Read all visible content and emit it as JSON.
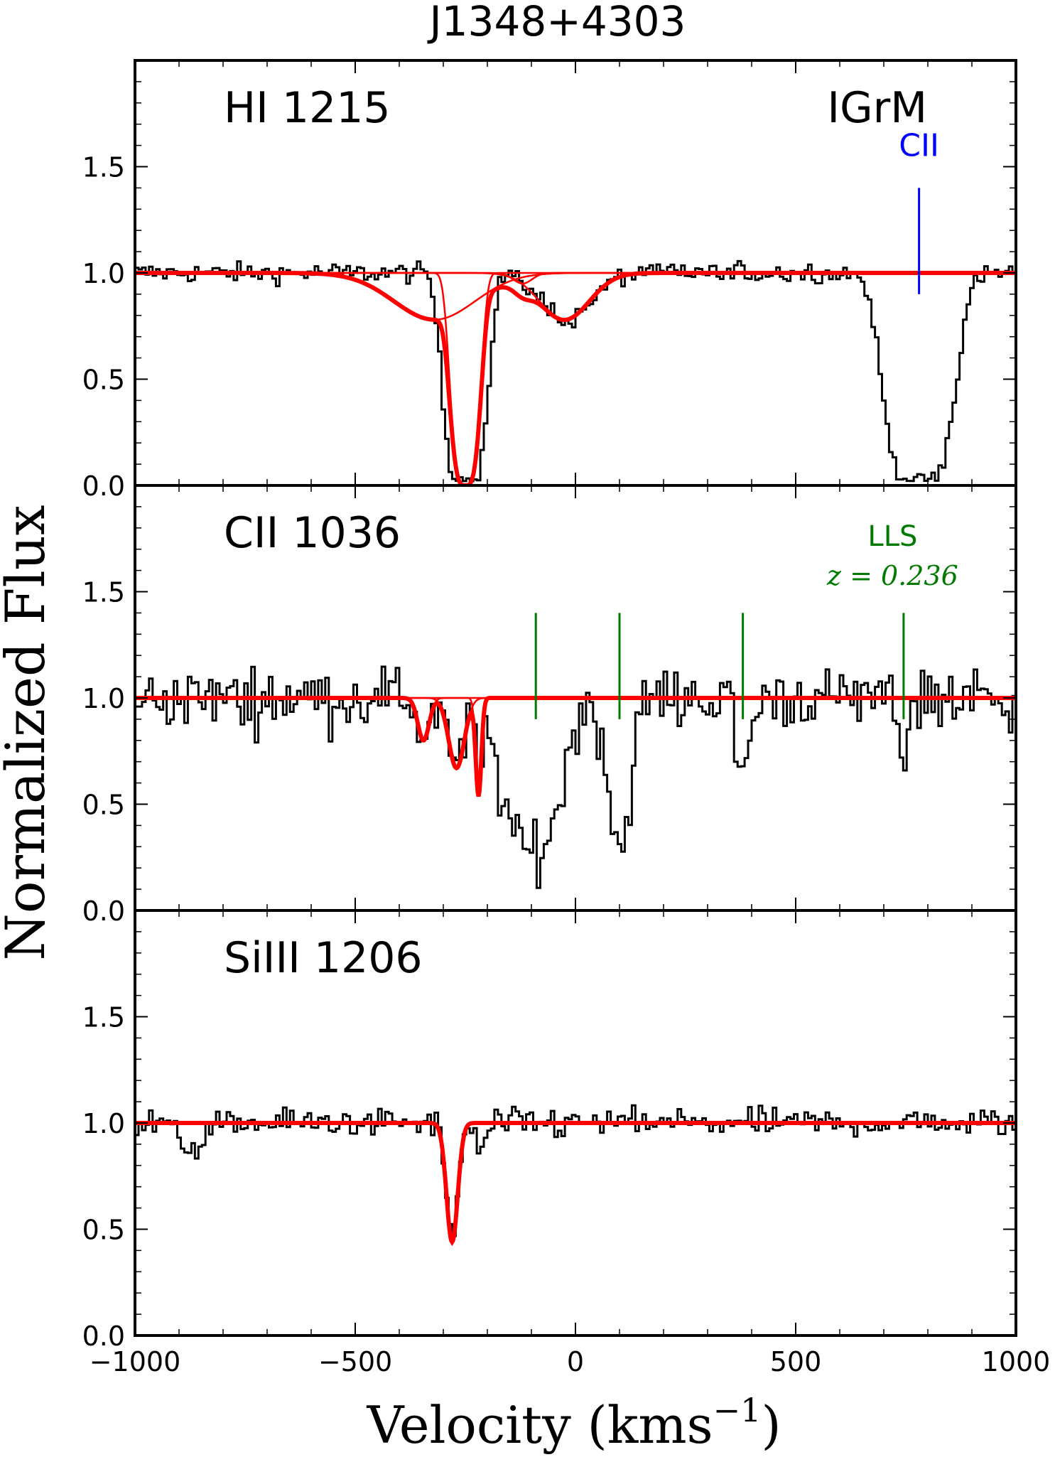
{
  "chart_data": {
    "type": "line",
    "title": "J1348+4303",
    "xlabel_main": "Velocity (kms",
    "xlabel_exp": "−1",
    "xlabel_close": ")",
    "ylabel": "Normalized Flux",
    "xlim": [
      -1000,
      1000
    ],
    "ylim": [
      0.0,
      2.0
    ],
    "x_ticks": [
      -1000,
      -500,
      0,
      500,
      1000
    ],
    "x_tick_labels": [
      "−1000",
      "−500",
      "0",
      "500",
      "1000"
    ],
    "y_ticks": [
      0.0,
      0.5,
      1.0,
      1.5
    ],
    "y_tick_labels": [
      "0.0",
      "0.5",
      "1.0",
      "1.5"
    ],
    "colors": {
      "data": "#000000",
      "fit": "#ff0000",
      "blue_marker": "#0000ff",
      "green_marker": "#007a00"
    },
    "panels": [
      {
        "label": "HI 1215",
        "corner_label": "IGrM",
        "fit_components": [
          {
            "center": -250,
            "depth": 1.0,
            "width": 40,
            "pow": 3.5
          },
          {
            "center": -320,
            "depth": 0.22,
            "width": 130,
            "pow": 2
          },
          {
            "center": -25,
            "depth": 0.22,
            "width": 80,
            "pow": 2
          },
          {
            "center": -120,
            "depth": 0.05,
            "width": 30,
            "pow": 2
          }
        ],
        "data_features": [
          {
            "center": -250,
            "depth": 1.0,
            "width": 60,
            "pow": 4
          },
          {
            "center": -20,
            "depth": 0.22,
            "width": 80,
            "pow": 2
          },
          {
            "center": 780,
            "depth": 1.0,
            "width": 95,
            "pow": 4
          }
        ],
        "noise": 0.04,
        "markers": [
          {
            "x": 780,
            "y0": 0.9,
            "y1": 1.4,
            "color": "#0000ff",
            "label": "CII",
            "label_y": 1.55
          }
        ]
      },
      {
        "label": "CII 1036",
        "lls_label": "LLS",
        "lls_z": "z = 0.236",
        "fit_components": [
          {
            "center": -345,
            "depth": 0.2,
            "width": 18,
            "pow": 2
          },
          {
            "center": -270,
            "depth": 0.33,
            "width": 25,
            "pow": 2
          },
          {
            "center": -220,
            "depth": 0.46,
            "width": 9,
            "pow": 2
          }
        ],
        "data_features": [
          {
            "center": -345,
            "depth": 0.2,
            "width": 18,
            "pow": 2
          },
          {
            "center": -270,
            "depth": 0.33,
            "width": 25,
            "pow": 2
          },
          {
            "center": -220,
            "depth": 0.46,
            "width": 10,
            "pow": 2
          },
          {
            "center": -100,
            "depth": 0.72,
            "width": 85,
            "pow": 3
          },
          {
            "center": 100,
            "depth": 0.7,
            "width": 35,
            "pow": 2
          },
          {
            "center": 380,
            "depth": 0.35,
            "width": 22,
            "pow": 2
          },
          {
            "center": 745,
            "depth": 0.3,
            "width": 12,
            "pow": 2
          }
        ],
        "noise": 0.12,
        "markers": [
          {
            "x": -90,
            "y0": 0.9,
            "y1": 1.4,
            "color": "#007a00"
          },
          {
            "x": 100,
            "y0": 0.9,
            "y1": 1.4,
            "color": "#007a00"
          },
          {
            "x": 380,
            "y0": 0.9,
            "y1": 1.4,
            "color": "#007a00"
          },
          {
            "x": 745,
            "y0": 0.9,
            "y1": 1.4,
            "color": "#007a00"
          }
        ]
      },
      {
        "label": "SiIII 1206",
        "fit_components": [
          {
            "center": -280,
            "depth": 0.56,
            "width": 18,
            "pow": 2
          }
        ],
        "data_features": [
          {
            "center": -280,
            "depth": 0.56,
            "width": 18,
            "pow": 2
          },
          {
            "center": -215,
            "depth": 0.12,
            "width": 20,
            "pow": 2
          },
          {
            "center": -870,
            "depth": 0.12,
            "width": 40,
            "pow": 2
          }
        ],
        "noise": 0.055,
        "markers": []
      }
    ]
  }
}
